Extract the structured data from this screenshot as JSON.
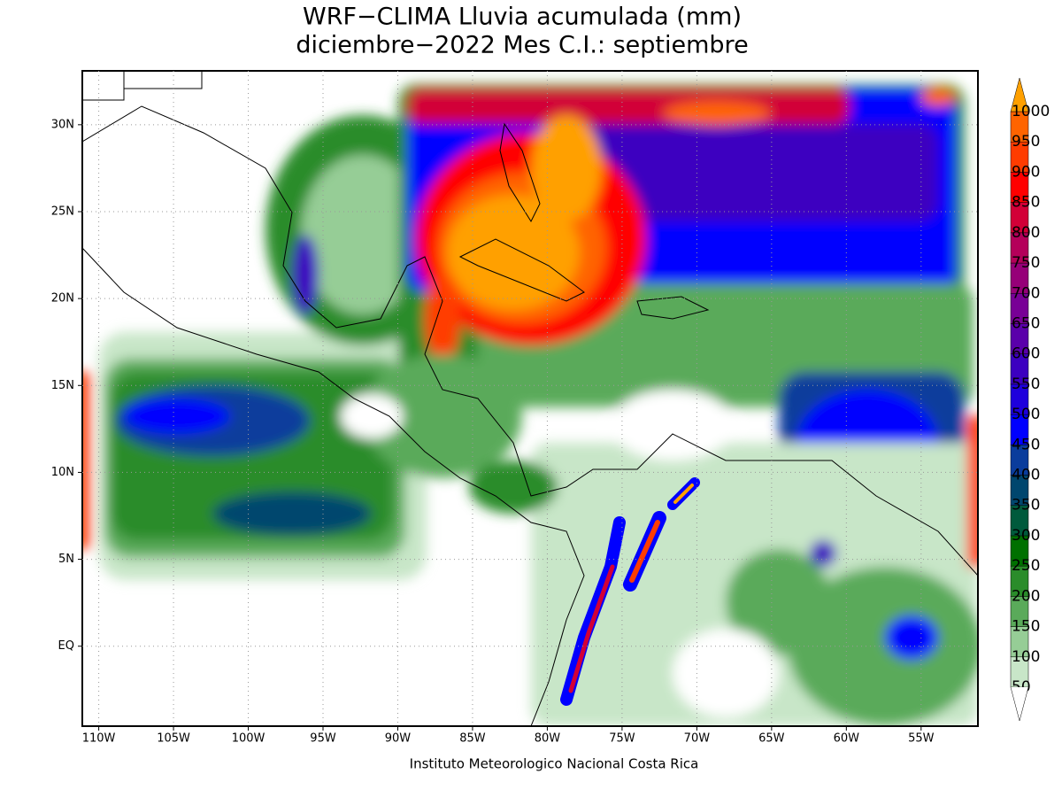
{
  "chart_data": {
    "type": "map",
    "title": "WRF−CLIMA Lluvia acumulada (mm)",
    "subtitle": "diciembre−2022 Mes C.I.: septiembre",
    "footer": "Instituto Meteorologico Nacional Costa Rica",
    "xlim": [
      -111.1,
      -51.2
    ],
    "ylim": [
      -4.6,
      33.1
    ],
    "xticks": [
      {
        "value": -110,
        "label": "110W"
      },
      {
        "value": -105,
        "label": "105W"
      },
      {
        "value": -100,
        "label": "100W"
      },
      {
        "value": -95,
        "label": "95W"
      },
      {
        "value": -90,
        "label": "90W"
      },
      {
        "value": -85,
        "label": "85W"
      },
      {
        "value": -80,
        "label": "80W"
      },
      {
        "value": -75,
        "label": "75W"
      },
      {
        "value": -70,
        "label": "70W"
      },
      {
        "value": -65,
        "label": "65W"
      },
      {
        "value": -60,
        "label": "60W"
      },
      {
        "value": -55,
        "label": "55W"
      }
    ],
    "yticks": [
      {
        "value": 0,
        "label": "EQ"
      },
      {
        "value": 5,
        "label": "5N"
      },
      {
        "value": 10,
        "label": "10N"
      },
      {
        "value": 15,
        "label": "15N"
      },
      {
        "value": 20,
        "label": "20N"
      },
      {
        "value": 25,
        "label": "25N"
      },
      {
        "value": 30,
        "label": "30N"
      }
    ],
    "grid": true,
    "colorbar": {
      "levels": [
        50,
        100,
        150,
        200,
        250,
        300,
        350,
        400,
        450,
        500,
        550,
        600,
        650,
        700,
        750,
        800,
        850,
        900,
        950,
        1000
      ],
      "colors": [
        "#c8e6c8",
        "#96cd96",
        "#5aaa5a",
        "#2a8c2a",
        "#007000",
        "#005a3c",
        "#00466e",
        "#0a3c9c",
        "#0000ff",
        "#1e00dc",
        "#3c00c0",
        "#5a00aa",
        "#780096",
        "#960078",
        "#b4005a",
        "#d20037",
        "#ff0000",
        "#ff3c00",
        "#ff6400",
        "#ffa000"
      ]
    }
  }
}
